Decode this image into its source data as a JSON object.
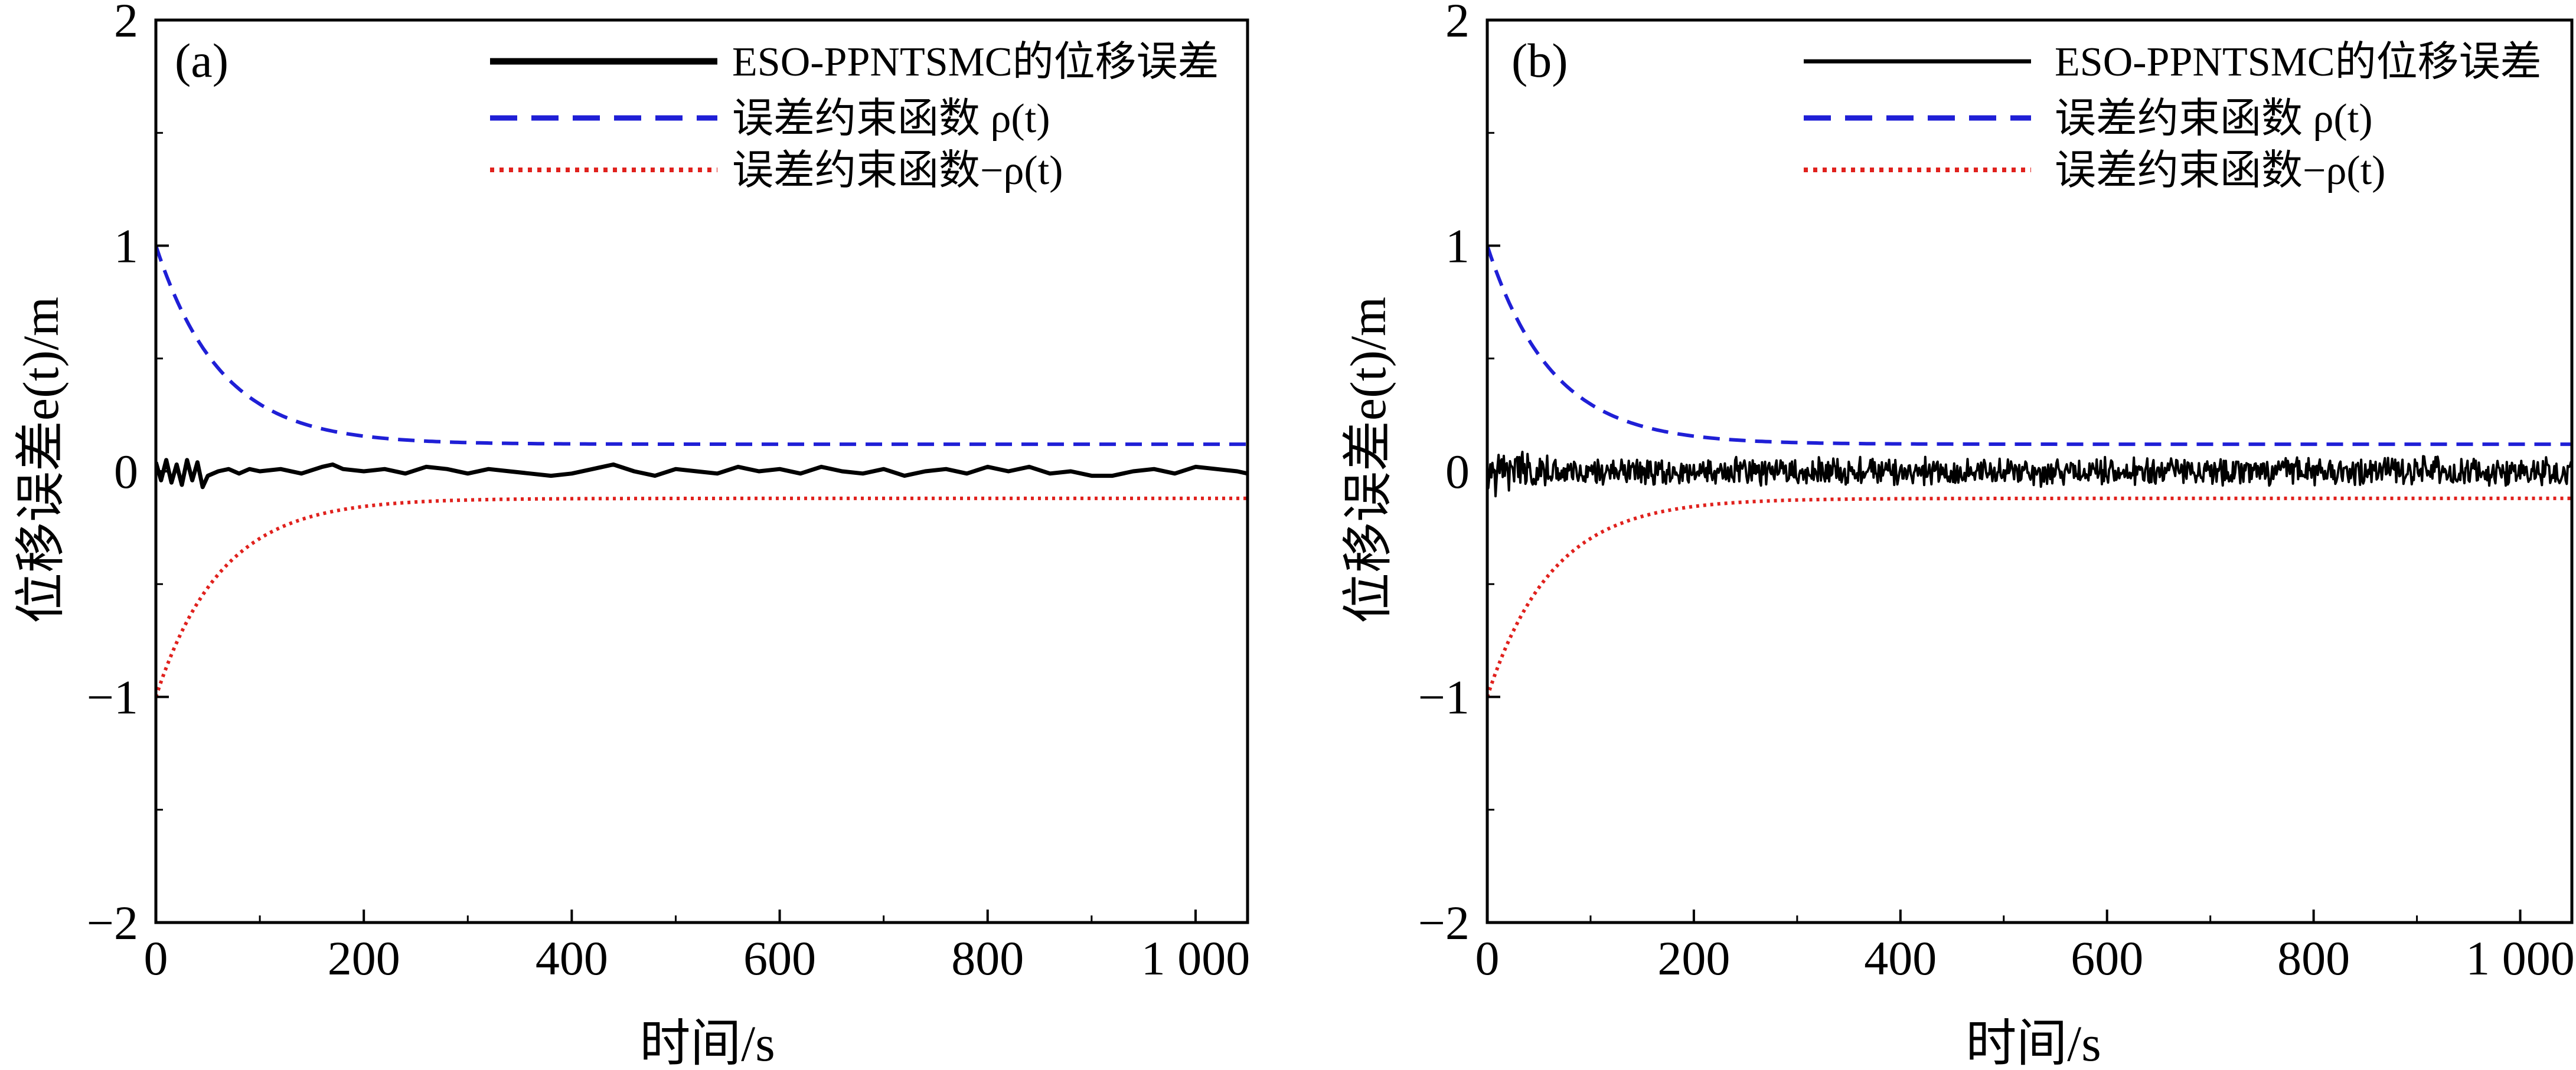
{
  "chart_data": [
    {
      "type": "line",
      "panel_label": "(a)",
      "xlabel": "时间/s",
      "ylabel": "位移误差e(t)/m",
      "xlim": [
        0,
        1050
      ],
      "ylim": [
        -2,
        2
      ],
      "xticks": [
        0,
        200,
        400,
        600,
        800,
        1000
      ],
      "xtick_labels": [
        "0",
        "200",
        "400",
        "600",
        "800",
        "1 000"
      ],
      "yticks": [
        -2,
        -1,
        0,
        1,
        2
      ],
      "ytick_labels": [
        "−2",
        "−1",
        "0",
        "1",
        "2"
      ],
      "legend_position": "top-right",
      "series": [
        {
          "name": "ESO-PPNTSMC的位移误差",
          "color": "#000000",
          "style": "solid",
          "x": [
            0,
            5,
            10,
            15,
            20,
            25,
            30,
            35,
            40,
            45,
            50,
            60,
            70,
            80,
            90,
            100,
            120,
            140,
            160,
            170,
            180,
            200,
            220,
            240,
            260,
            280,
            300,
            320,
            340,
            360,
            380,
            400,
            420,
            440,
            460,
            480,
            500,
            520,
            540,
            560,
            580,
            600,
            620,
            640,
            660,
            680,
            700,
            720,
            740,
            760,
            780,
            800,
            820,
            840,
            860,
            880,
            900,
            920,
            940,
            960,
            980,
            1000,
            1020,
            1040,
            1050
          ],
          "values": [
            0.04,
            -0.04,
            0.05,
            -0.05,
            0.03,
            -0.06,
            0.05,
            -0.04,
            0.04,
            -0.07,
            -0.02,
            0.0,
            0.01,
            -0.01,
            0.01,
            0.0,
            0.01,
            -0.01,
            0.02,
            0.03,
            0.01,
            0.0,
            0.01,
            -0.01,
            0.02,
            0.01,
            -0.01,
            0.01,
            0.0,
            -0.01,
            -0.02,
            -0.01,
            0.01,
            0.03,
            0.0,
            -0.02,
            0.01,
            0.0,
            -0.01,
            0.02,
            0.0,
            0.01,
            -0.01,
            0.02,
            0.0,
            -0.01,
            0.01,
            -0.02,
            0.0,
            0.01,
            -0.01,
            0.02,
            0.0,
            0.02,
            -0.01,
            0.0,
            -0.02,
            -0.02,
            0.0,
            0.01,
            -0.01,
            0.02,
            0.01,
            0.0,
            -0.01
          ]
        },
        {
          "name": "误差约束函数 ρ(t)",
          "color": "#1f1fd6",
          "style": "dashed",
          "rho_0": 1.0,
          "rho_inf": 0.12,
          "decay_rate": 0.016
        },
        {
          "name": "误差约束函数−ρ(t)",
          "color": "#e0211d",
          "style": "dotted",
          "rho_0": -1.0,
          "rho_inf": -0.12,
          "decay_rate": 0.016
        }
      ]
    },
    {
      "type": "line",
      "panel_label": "(b)",
      "xlabel": "时间/s",
      "ylabel": "位移误差e(t)/m",
      "xlim": [
        0,
        1050
      ],
      "ylim": [
        -2,
        2
      ],
      "xticks": [
        0,
        200,
        400,
        600,
        800,
        1000
      ],
      "xtick_labels": [
        "0",
        "200",
        "400",
        "600",
        "800",
        "1 000"
      ],
      "yticks": [
        -2,
        -1,
        0,
        1,
        2
      ],
      "ytick_labels": [
        "−2",
        "−1",
        "0",
        "1",
        "2"
      ],
      "legend_position": "top-right",
      "series": [
        {
          "name": "ESO-PPNTSMC的位移误差",
          "color": "#000000",
          "style": "solid",
          "noise_amplitude": 0.05,
          "noise_amplitude_early": 0.09,
          "noise_points": 1050
        },
        {
          "name": "误差约束函数 ρ(t)",
          "color": "#1f1fd6",
          "style": "dashed",
          "rho_0": 1.0,
          "rho_inf": 0.12,
          "decay_rate": 0.016
        },
        {
          "name": "误差约束函数−ρ(t)",
          "color": "#e0211d",
          "style": "dotted",
          "rho_0": -1.0,
          "rho_inf": -0.12,
          "decay_rate": 0.016
        }
      ]
    }
  ]
}
